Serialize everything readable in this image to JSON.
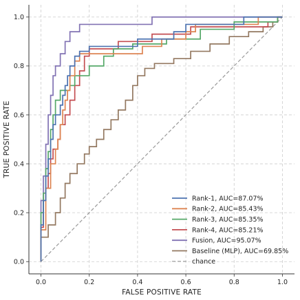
{
  "chart_data": {
    "type": "line",
    "xlabel": "FALSE POSITIVE RATE",
    "ylabel": "TRUE POSITIVE RATE",
    "xlim": [
      -0.05,
      1.05
    ],
    "ylim": [
      -0.05,
      1.05
    ],
    "xticks": [
      "0.0",
      "0.2",
      "0.4",
      "0.6",
      "0.8",
      "1.0"
    ],
    "yticks": [
      "0.0",
      "0.2",
      "0.4",
      "0.6",
      "0.8",
      "1.0"
    ],
    "grid": true,
    "legend_position": "lower-right",
    "series": [
      {
        "name": "Rank-1, AUC=87.07%",
        "color": "#4c72b0",
        "points": [
          [
            0,
            0
          ],
          [
            0,
            0.15
          ],
          [
            0.01,
            0.15
          ],
          [
            0.01,
            0.25
          ],
          [
            0.02,
            0.25
          ],
          [
            0.02,
            0.35
          ],
          [
            0.03,
            0.35
          ],
          [
            0.03,
            0.42
          ],
          [
            0.04,
            0.42
          ],
          [
            0.04,
            0.5
          ],
          [
            0.05,
            0.5
          ],
          [
            0.05,
            0.56
          ],
          [
            0.06,
            0.56
          ],
          [
            0.06,
            0.6
          ],
          [
            0.08,
            0.6
          ],
          [
            0.08,
            0.64
          ],
          [
            0.09,
            0.64
          ],
          [
            0.09,
            0.68
          ],
          [
            0.1,
            0.68
          ],
          [
            0.1,
            0.72
          ],
          [
            0.11,
            0.72
          ],
          [
            0.11,
            0.76
          ],
          [
            0.12,
            0.76
          ],
          [
            0.12,
            0.8
          ],
          [
            0.14,
            0.8
          ],
          [
            0.14,
            0.84
          ],
          [
            0.16,
            0.84
          ],
          [
            0.16,
            0.86
          ],
          [
            0.2,
            0.86
          ],
          [
            0.2,
            0.88
          ],
          [
            0.4,
            0.88
          ],
          [
            0.4,
            0.91
          ],
          [
            0.55,
            0.91
          ],
          [
            0.55,
            0.94
          ],
          [
            0.6,
            0.94
          ],
          [
            0.6,
            0.97
          ],
          [
            0.84,
            0.97
          ],
          [
            0.84,
            1.0
          ],
          [
            1.0,
            1.0
          ]
        ]
      },
      {
        "name": "Rank-2, AUC=85.43%",
        "color": "#dd8452",
        "points": [
          [
            0,
            0
          ],
          [
            0,
            0.13
          ],
          [
            0.02,
            0.13
          ],
          [
            0.02,
            0.3
          ],
          [
            0.04,
            0.3
          ],
          [
            0.04,
            0.4
          ],
          [
            0.06,
            0.4
          ],
          [
            0.06,
            0.46
          ],
          [
            0.07,
            0.46
          ],
          [
            0.07,
            0.5
          ],
          [
            0.08,
            0.5
          ],
          [
            0.08,
            0.56
          ],
          [
            0.09,
            0.56
          ],
          [
            0.09,
            0.62
          ],
          [
            0.1,
            0.62
          ],
          [
            0.1,
            0.66
          ],
          [
            0.11,
            0.66
          ],
          [
            0.11,
            0.7
          ],
          [
            0.12,
            0.7
          ],
          [
            0.12,
            0.76
          ],
          [
            0.14,
            0.76
          ],
          [
            0.14,
            0.82
          ],
          [
            0.16,
            0.82
          ],
          [
            0.16,
            0.85
          ],
          [
            0.42,
            0.85
          ],
          [
            0.42,
            0.88
          ],
          [
            0.5,
            0.88
          ],
          [
            0.5,
            0.91
          ],
          [
            0.6,
            0.91
          ],
          [
            0.6,
            0.94
          ],
          [
            0.64,
            0.94
          ],
          [
            0.64,
            0.97
          ],
          [
            0.9,
            0.97
          ],
          [
            0.9,
            1.0
          ],
          [
            1.0,
            1.0
          ]
        ]
      },
      {
        "name": "Rank-3, AUC=85.35%",
        "color": "#55a868",
        "points": [
          [
            0,
            0
          ],
          [
            0,
            0.2
          ],
          [
            0.01,
            0.2
          ],
          [
            0.01,
            0.28
          ],
          [
            0.02,
            0.28
          ],
          [
            0.02,
            0.38
          ],
          [
            0.03,
            0.38
          ],
          [
            0.03,
            0.45
          ],
          [
            0.04,
            0.45
          ],
          [
            0.04,
            0.54
          ],
          [
            0.05,
            0.54
          ],
          [
            0.05,
            0.6
          ],
          [
            0.06,
            0.6
          ],
          [
            0.06,
            0.66
          ],
          [
            0.08,
            0.66
          ],
          [
            0.08,
            0.7
          ],
          [
            0.12,
            0.7
          ],
          [
            0.12,
            0.72
          ],
          [
            0.14,
            0.72
          ],
          [
            0.14,
            0.76
          ],
          [
            0.2,
            0.76
          ],
          [
            0.2,
            0.8
          ],
          [
            0.26,
            0.8
          ],
          [
            0.26,
            0.84
          ],
          [
            0.3,
            0.84
          ],
          [
            0.3,
            0.87
          ],
          [
            0.38,
            0.87
          ],
          [
            0.38,
            0.89
          ],
          [
            0.52,
            0.89
          ],
          [
            0.52,
            0.91
          ],
          [
            0.66,
            0.91
          ],
          [
            0.66,
            0.95
          ],
          [
            0.8,
            0.95
          ],
          [
            0.8,
            0.98
          ],
          [
            0.98,
            0.98
          ],
          [
            0.98,
            1.0
          ],
          [
            1.0,
            1.0
          ]
        ]
      },
      {
        "name": "Rank-4, AUC=85.21%",
        "color": "#c44e52",
        "points": [
          [
            0,
            0
          ],
          [
            0,
            0.14
          ],
          [
            0.01,
            0.14
          ],
          [
            0.01,
            0.25
          ],
          [
            0.02,
            0.25
          ],
          [
            0.02,
            0.3
          ],
          [
            0.03,
            0.3
          ],
          [
            0.03,
            0.36
          ],
          [
            0.04,
            0.36
          ],
          [
            0.04,
            0.42
          ],
          [
            0.05,
            0.42
          ],
          [
            0.05,
            0.46
          ],
          [
            0.07,
            0.46
          ],
          [
            0.07,
            0.5
          ],
          [
            0.08,
            0.5
          ],
          [
            0.08,
            0.56
          ],
          [
            0.1,
            0.56
          ],
          [
            0.1,
            0.6
          ],
          [
            0.12,
            0.6
          ],
          [
            0.12,
            0.66
          ],
          [
            0.14,
            0.66
          ],
          [
            0.14,
            0.72
          ],
          [
            0.16,
            0.72
          ],
          [
            0.16,
            0.78
          ],
          [
            0.18,
            0.78
          ],
          [
            0.18,
            0.84
          ],
          [
            0.2,
            0.84
          ],
          [
            0.2,
            0.87
          ],
          [
            0.32,
            0.87
          ],
          [
            0.32,
            0.9
          ],
          [
            0.46,
            0.9
          ],
          [
            0.46,
            0.93
          ],
          [
            0.62,
            0.93
          ],
          [
            0.62,
            0.96
          ],
          [
            0.94,
            0.96
          ],
          [
            0.94,
            0.98
          ],
          [
            0.98,
            0.98
          ],
          [
            0.98,
            1.0
          ],
          [
            1.0,
            1.0
          ]
        ]
      },
      {
        "name": "Fusion, AUC=95.07%",
        "color": "#8172b3",
        "points": [
          [
            0,
            0
          ],
          [
            0,
            0.25
          ],
          [
            0.01,
            0.25
          ],
          [
            0.01,
            0.35
          ],
          [
            0.02,
            0.35
          ],
          [
            0.02,
            0.48
          ],
          [
            0.03,
            0.48
          ],
          [
            0.03,
            0.6
          ],
          [
            0.04,
            0.6
          ],
          [
            0.04,
            0.68
          ],
          [
            0.05,
            0.68
          ],
          [
            0.05,
            0.76
          ],
          [
            0.06,
            0.76
          ],
          [
            0.06,
            0.8
          ],
          [
            0.08,
            0.8
          ],
          [
            0.08,
            0.85
          ],
          [
            0.1,
            0.85
          ],
          [
            0.1,
            0.9
          ],
          [
            0.12,
            0.9
          ],
          [
            0.12,
            0.94
          ],
          [
            0.16,
            0.94
          ],
          [
            0.16,
            0.97
          ],
          [
            0.46,
            0.97
          ],
          [
            0.46,
            1.0
          ],
          [
            1.0,
            1.0
          ]
        ]
      },
      {
        "name": "Baseline (MLP), AUC=69.85%",
        "color": "#937860",
        "points": [
          [
            0,
            0
          ],
          [
            0,
            0.1
          ],
          [
            0.03,
            0.1
          ],
          [
            0.03,
            0.15
          ],
          [
            0.06,
            0.15
          ],
          [
            0.06,
            0.2
          ],
          [
            0.08,
            0.2
          ],
          [
            0.08,
            0.26
          ],
          [
            0.1,
            0.26
          ],
          [
            0.1,
            0.32
          ],
          [
            0.12,
            0.32
          ],
          [
            0.12,
            0.36
          ],
          [
            0.15,
            0.36
          ],
          [
            0.15,
            0.4
          ],
          [
            0.18,
            0.4
          ],
          [
            0.18,
            0.44
          ],
          [
            0.2,
            0.44
          ],
          [
            0.2,
            0.47
          ],
          [
            0.23,
            0.47
          ],
          [
            0.23,
            0.5
          ],
          [
            0.26,
            0.5
          ],
          [
            0.26,
            0.54
          ],
          [
            0.29,
            0.54
          ],
          [
            0.29,
            0.58
          ],
          [
            0.32,
            0.58
          ],
          [
            0.32,
            0.62
          ],
          [
            0.35,
            0.62
          ],
          [
            0.35,
            0.66
          ],
          [
            0.38,
            0.66
          ],
          [
            0.38,
            0.72
          ],
          [
            0.4,
            0.72
          ],
          [
            0.4,
            0.76
          ],
          [
            0.43,
            0.76
          ],
          [
            0.43,
            0.79
          ],
          [
            0.47,
            0.79
          ],
          [
            0.47,
            0.81
          ],
          [
            0.55,
            0.81
          ],
          [
            0.55,
            0.83
          ],
          [
            0.62,
            0.83
          ],
          [
            0.62,
            0.86
          ],
          [
            0.7,
            0.86
          ],
          [
            0.7,
            0.89
          ],
          [
            0.78,
            0.89
          ],
          [
            0.78,
            0.92
          ],
          [
            0.86,
            0.92
          ],
          [
            0.86,
            0.94
          ],
          [
            0.92,
            0.94
          ],
          [
            0.92,
            0.96
          ],
          [
            0.96,
            0.96
          ],
          [
            0.96,
            0.98
          ],
          [
            0.98,
            0.98
          ],
          [
            0.98,
            1.0
          ],
          [
            1.0,
            1.0
          ]
        ]
      },
      {
        "name": "chance",
        "color": "#999999",
        "dashed": true,
        "points": [
          [
            0,
            0
          ],
          [
            1,
            1
          ]
        ]
      }
    ]
  }
}
